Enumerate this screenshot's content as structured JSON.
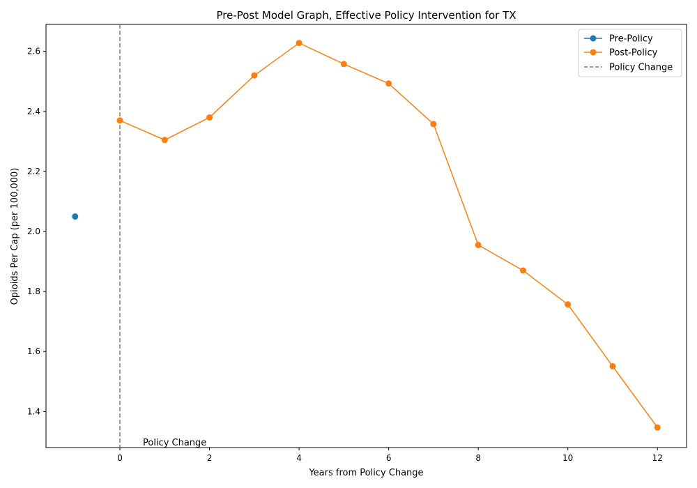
{
  "chart_data": {
    "type": "line",
    "title": "Pre-Post Model Graph, Effective Policy Intervention for TX",
    "xlabel": "Years from Policy Change",
    "ylabel": "Opioids Per Cap (per 100,000)",
    "xlim": [
      -1.65,
      12.65
    ],
    "ylim": [
      1.28,
      2.69
    ],
    "xticks": [
      0,
      2,
      4,
      6,
      8,
      10,
      12
    ],
    "xtick_labels": [
      "0",
      "2",
      "4",
      "6",
      "8",
      "10",
      "12"
    ],
    "yticks": [
      1.4,
      1.6,
      1.8,
      2.0,
      2.2,
      2.4,
      2.6
    ],
    "ytick_labels": [
      "1.4",
      "1.6",
      "1.8",
      "2.0",
      "2.2",
      "2.4",
      "2.6"
    ],
    "grid": false,
    "legend_position": "top-right",
    "series": [
      {
        "name": "Pre-Policy",
        "color": "#1f77b4",
        "marker": "circle",
        "x": [
          -1
        ],
        "y": [
          2.05
        ]
      },
      {
        "name": "Post-Policy",
        "color": "#ff7f0e",
        "marker": "circle",
        "x": [
          0,
          1,
          2,
          3,
          4,
          5,
          6,
          7,
          8,
          9,
          10,
          11,
          12
        ],
        "y": [
          2.37,
          2.305,
          2.38,
          2.52,
          2.628,
          2.558,
          2.493,
          2.358,
          1.955,
          1.87,
          1.757,
          1.551,
          1.347
        ]
      }
    ],
    "reference_line": {
      "name": "Policy Change",
      "x": 0,
      "color": "#808080",
      "style": "dashed"
    },
    "annotation": {
      "text": "Policy Change"
    }
  }
}
